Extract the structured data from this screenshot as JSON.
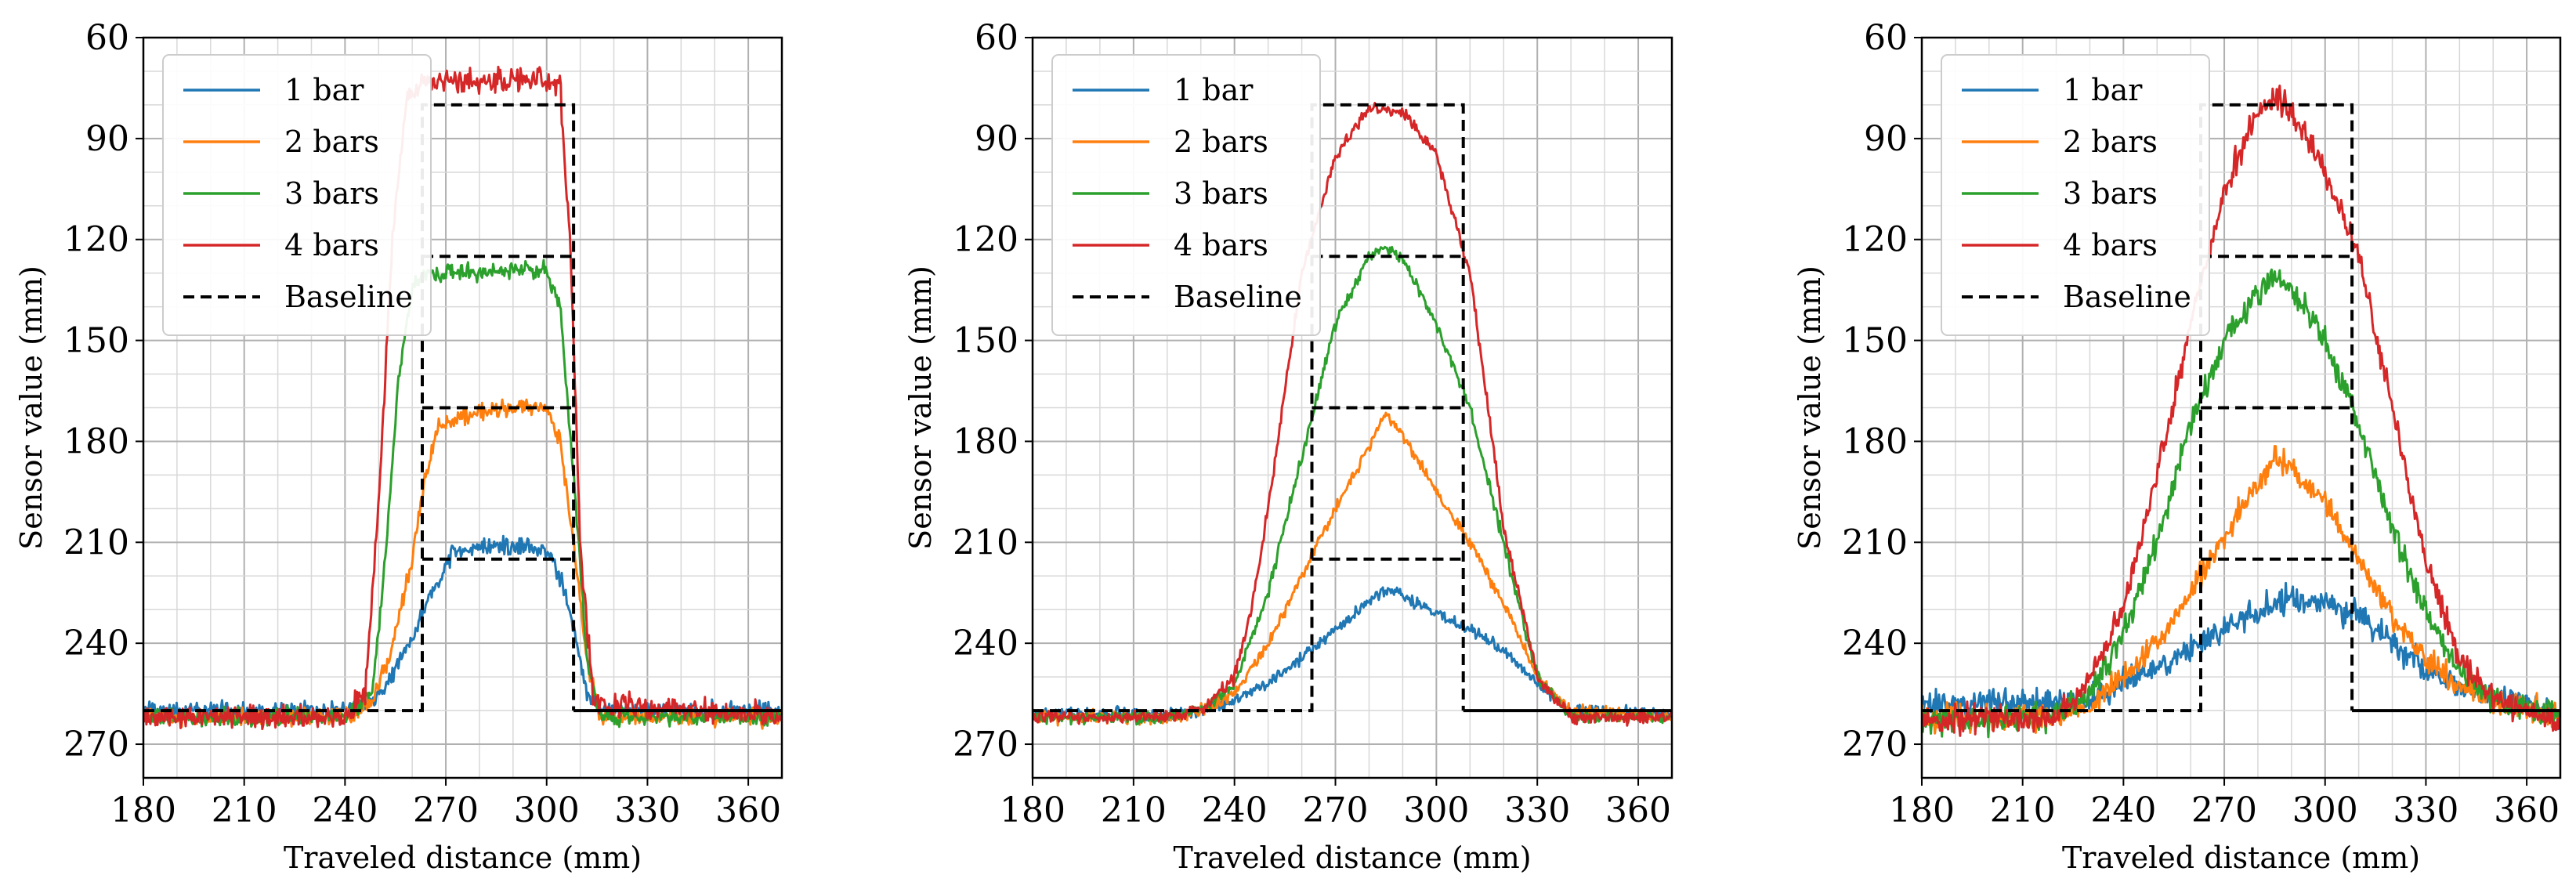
{
  "figure": {
    "panel_count": 3,
    "colors": {
      "1 bar": "#1f77b4",
      "2 bars": "#ff7f0e",
      "3 bars": "#2ca02c",
      "4 bars": "#d62728",
      "Baseline": "#000000"
    }
  },
  "chart_data": [
    {
      "type": "line",
      "title": "",
      "xlabel": "Traveled distance (mm)",
      "ylabel": "Sensor value (mm)",
      "xlim": [
        180,
        370
      ],
      "ylim": [
        280,
        60
      ],
      "y_inverted": true,
      "xticks": [
        180,
        210,
        240,
        270,
        300,
        330,
        360
      ],
      "yticks": [
        60,
        90,
        120,
        150,
        180,
        210,
        240,
        270
      ],
      "grid": true,
      "legend_position": "top-left",
      "legend": [
        "1 bar",
        "2 bars",
        "3 bars",
        "4 bars",
        "Baseline"
      ],
      "series": [
        {
          "name": "1 bar",
          "style": "solid",
          "noise": 2.5,
          "x": [
            180,
            240,
            248,
            254,
            260,
            266,
            272,
            280,
            290,
            300,
            304,
            308,
            312,
            316,
            370
          ],
          "values": [
            260,
            260,
            257,
            250,
            238,
            225,
            213,
            211,
            211,
            212,
            220,
            235,
            255,
            260,
            260
          ]
        },
        {
          "name": "2 bars",
          "style": "solid",
          "noise": 2.5,
          "x": [
            180,
            240,
            248,
            254,
            260,
            264,
            268,
            280,
            290,
            300,
            304,
            308,
            312,
            316,
            370
          ],
          "values": [
            262,
            262,
            257,
            242,
            215,
            190,
            175,
            171,
            170,
            170,
            180,
            210,
            245,
            262,
            262
          ]
        },
        {
          "name": "3 bars",
          "style": "solid",
          "noise": 2.5,
          "x": [
            180,
            240,
            248,
            252,
            256,
            260,
            264,
            280,
            300,
            304,
            308,
            312,
            316,
            370
          ],
          "values": [
            262,
            262,
            255,
            215,
            160,
            135,
            130,
            130,
            129,
            140,
            190,
            245,
            262,
            262
          ]
        },
        {
          "name": "4 bars",
          "style": "solid",
          "noise": 3.5,
          "x": [
            180,
            240,
            246,
            250,
            254,
            258,
            262,
            280,
            300,
            304,
            307,
            310,
            314,
            370
          ],
          "values": [
            262,
            262,
            255,
            200,
            120,
            80,
            73,
            73,
            73,
            75,
            120,
            210,
            258,
            262
          ]
        },
        {
          "name": "Baseline",
          "style": "dashed",
          "x": [
            180,
            263,
            263,
            308,
            308,
            370
          ],
          "values": [
            260,
            260,
            80,
            80,
            260,
            260
          ],
          "extra_segments": [
            {
              "x": [
                263,
                308
              ],
              "values": [
                125,
                125
              ]
            },
            {
              "x": [
                263,
                308
              ],
              "values": [
                170,
                170
              ]
            },
            {
              "x": [
                263,
                308
              ],
              "values": [
                215,
                215
              ]
            }
          ]
        }
      ]
    },
    {
      "type": "line",
      "title": "",
      "xlabel": "Traveled distance (mm)",
      "ylabel": "Sensor value (mm)",
      "xlim": [
        180,
        370
      ],
      "ylim": [
        280,
        60
      ],
      "y_inverted": true,
      "xticks": [
        180,
        210,
        240,
        270,
        300,
        330,
        360
      ],
      "yticks": [
        60,
        90,
        120,
        150,
        180,
        210,
        240,
        270
      ],
      "grid": true,
      "legend_position": "top-left",
      "legend": [
        "1 bar",
        "2 bars",
        "3 bars",
        "4 bars",
        "Baseline"
      ],
      "series": [
        {
          "name": "1 bar",
          "style": "solid",
          "noise": 1.8,
          "x": [
            180,
            220,
            230,
            240,
            250,
            260,
            270,
            280,
            285,
            290,
            300,
            310,
            320,
            330,
            340,
            370
          ],
          "values": [
            261,
            261,
            260,
            257,
            252,
            244,
            236,
            227,
            224,
            226,
            231,
            236,
            242,
            252,
            260,
            261
          ]
        },
        {
          "name": "2 bars",
          "style": "solid",
          "noise": 1.8,
          "x": [
            180,
            220,
            230,
            240,
            250,
            260,
            270,
            280,
            285,
            290,
            300,
            310,
            320,
            330,
            340,
            370
          ],
          "values": [
            262,
            262,
            260,
            255,
            240,
            220,
            200,
            182,
            172,
            178,
            195,
            210,
            228,
            250,
            260,
            262
          ]
        },
        {
          "name": "3 bars",
          "style": "solid",
          "noise": 1.8,
          "x": [
            180,
            220,
            230,
            240,
            250,
            260,
            270,
            280,
            285,
            290,
            300,
            310,
            320,
            330,
            340,
            370
          ],
          "values": [
            262,
            262,
            260,
            252,
            225,
            185,
            145,
            125,
            122,
            126,
            145,
            170,
            210,
            250,
            262,
            262
          ]
        },
        {
          "name": "4 bars",
          "style": "solid",
          "noise": 1.8,
          "x": [
            180,
            220,
            230,
            240,
            245,
            250,
            255,
            260,
            270,
            280,
            290,
            300,
            310,
            320,
            330,
            340,
            370
          ],
          "values": [
            262,
            262,
            260,
            250,
            230,
            200,
            165,
            130,
            95,
            81,
            82,
            95,
            130,
            205,
            250,
            262,
            262
          ]
        },
        {
          "name": "Baseline",
          "style": "dashed",
          "x": [
            180,
            263,
            263,
            308,
            308,
            370
          ],
          "values": [
            260,
            260,
            80,
            80,
            260,
            260
          ],
          "extra_segments": [
            {
              "x": [
                263,
                308
              ],
              "values": [
                125,
                125
              ]
            },
            {
              "x": [
                263,
                308
              ],
              "values": [
                170,
                170
              ]
            },
            {
              "x": [
                263,
                308
              ],
              "values": [
                215,
                215
              ]
            }
          ]
        }
      ]
    },
    {
      "type": "line",
      "title": "",
      "xlabel": "Traveled distance (mm)",
      "ylabel": "Sensor value (mm)",
      "xlim": [
        180,
        370
      ],
      "ylim": [
        280,
        60
      ],
      "y_inverted": true,
      "xticks": [
        180,
        210,
        240,
        270,
        300,
        330,
        360
      ],
      "yticks": [
        60,
        90,
        120,
        150,
        180,
        210,
        240,
        270
      ],
      "grid": true,
      "legend_position": "top-left",
      "legend": [
        "1 bar",
        "2 bars",
        "3 bars",
        "4 bars",
        "Baseline"
      ],
      "series": [
        {
          "name": "1 bar",
          "style": "solid",
          "noise": 4,
          "x": [
            180,
            220,
            230,
            240,
            250,
            260,
            270,
            280,
            290,
            300,
            310,
            320,
            330,
            340,
            350,
            370
          ],
          "values": [
            258,
            258,
            257,
            252,
            247,
            242,
            236,
            230,
            227,
            228,
            232,
            240,
            247,
            252,
            256,
            260
          ]
        },
        {
          "name": "2 bars",
          "style": "solid",
          "noise": 4,
          "x": [
            180,
            220,
            230,
            240,
            250,
            260,
            270,
            280,
            285,
            290,
            300,
            310,
            320,
            330,
            340,
            350,
            370
          ],
          "values": [
            262,
            262,
            258,
            250,
            240,
            225,
            208,
            193,
            185,
            188,
            198,
            215,
            232,
            245,
            252,
            257,
            262
          ]
        },
        {
          "name": "3 bars",
          "style": "solid",
          "noise": 4,
          "x": [
            180,
            220,
            230,
            240,
            250,
            260,
            270,
            280,
            285,
            290,
            300,
            310,
            320,
            330,
            340,
            350,
            370
          ],
          "values": [
            263,
            262,
            255,
            238,
            210,
            175,
            150,
            136,
            131,
            135,
            150,
            175,
            205,
            232,
            248,
            256,
            262
          ]
        },
        {
          "name": "4 bars",
          "style": "solid",
          "noise": 4,
          "x": [
            180,
            220,
            230,
            240,
            250,
            260,
            270,
            280,
            285,
            290,
            300,
            310,
            320,
            330,
            340,
            350,
            370
          ],
          "values": [
            263,
            262,
            252,
            228,
            190,
            145,
            105,
            82,
            78,
            82,
            100,
            125,
            170,
            215,
            245,
            256,
            264
          ]
        },
        {
          "name": "Baseline",
          "style": "dashed",
          "x": [
            180,
            263,
            263,
            308,
            308,
            370
          ],
          "values": [
            260,
            260,
            80,
            80,
            260,
            260
          ],
          "extra_segments": [
            {
              "x": [
                263,
                308
              ],
              "values": [
                125,
                125
              ]
            },
            {
              "x": [
                263,
                308
              ],
              "values": [
                170,
                170
              ]
            },
            {
              "x": [
                263,
                308
              ],
              "values": [
                215,
                215
              ]
            }
          ]
        }
      ]
    }
  ]
}
